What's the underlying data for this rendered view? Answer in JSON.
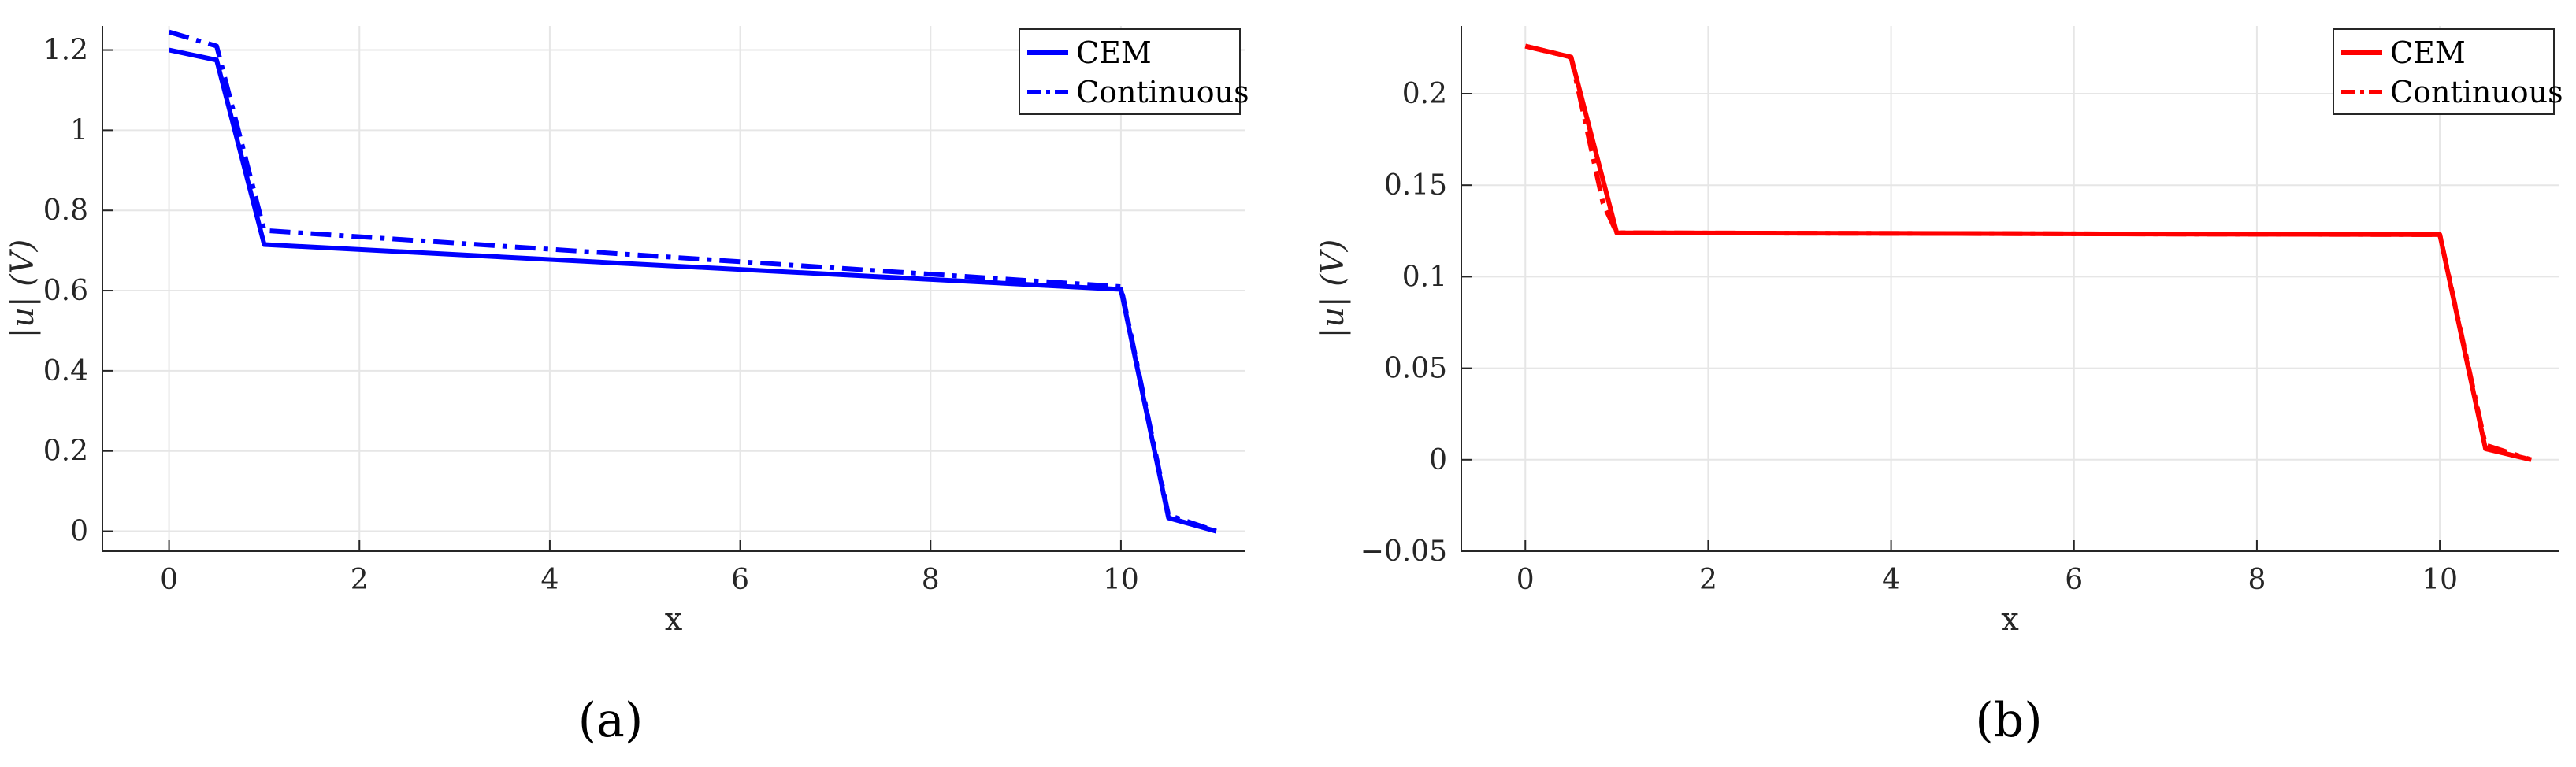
{
  "chart_data": [
    {
      "type": "line",
      "panel_label": "(a)",
      "xlabel": "x",
      "ylabel": "|u| (V)",
      "xlim": [
        -0.7,
        11.3
      ],
      "ylim": [
        -0.05,
        1.26
      ],
      "xticks": [
        0,
        2,
        4,
        6,
        8,
        10
      ],
      "yticks": [
        0,
        0.2,
        0.4,
        0.6,
        0.8,
        1,
        1.2
      ],
      "grid": true,
      "legend": "top-right",
      "series": [
        {
          "name": "CEM",
          "style": "solid",
          "color": "#0000ff",
          "x": [
            0,
            0.5,
            1,
            10,
            10.5,
            11
          ],
          "y": [
            1.2,
            1.175,
            0.715,
            0.603,
            0.033,
            0.0
          ]
        },
        {
          "name": "Continuous",
          "style": "dashdot",
          "color": "#0000ff",
          "x": [
            0,
            0.5,
            1,
            10,
            10.5,
            11
          ],
          "y": [
            1.245,
            1.21,
            0.75,
            0.61,
            0.04,
            0.0
          ]
        }
      ]
    },
    {
      "type": "line",
      "panel_label": "(b)",
      "xlabel": "x",
      "ylabel": "|u| (V)",
      "xlim": [
        -0.7,
        11.3
      ],
      "ylim": [
        -0.05,
        0.237
      ],
      "xticks": [
        0,
        2,
        4,
        6,
        8,
        10
      ],
      "yticks": [
        -0.05,
        0,
        0.05,
        0.1,
        0.15,
        0.2
      ],
      "grid": true,
      "legend": "top-right",
      "series": [
        {
          "name": "CEM",
          "style": "solid",
          "color": "#ff0000",
          "x": [
            0,
            0.5,
            1,
            10,
            10.5,
            11
          ],
          "y": [
            0.226,
            0.22,
            0.124,
            0.123,
            0.006,
            0.0
          ]
        },
        {
          "name": "Continuous",
          "style": "dashdot",
          "color": "#ff0000",
          "x": [
            0,
            0.5,
            0.85,
            1,
            10,
            10.5,
            11
          ],
          "y": [
            0.226,
            0.22,
            0.14,
            0.124,
            0.123,
            0.008,
            0.0
          ]
        }
      ]
    }
  ]
}
